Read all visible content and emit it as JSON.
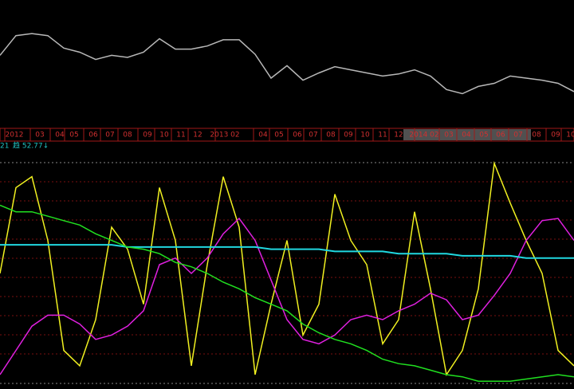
{
  "chart_data": [
    {
      "type": "line",
      "x": [
        0,
        2,
        4,
        6,
        8,
        10,
        12,
        14,
        16,
        18,
        20,
        22,
        24,
        26,
        28,
        30,
        32,
        34,
        36,
        38,
        40,
        42,
        44,
        46,
        48,
        50,
        52,
        54,
        56,
        58,
        60,
        62,
        64,
        66,
        68,
        70,
        72
      ],
      "xlim": [
        0,
        72
      ],
      "ylim": [
        0,
        100
      ],
      "xticks": [
        {
          "value": 1.8,
          "label": "2012"
        },
        {
          "value": 5,
          "label": "03"
        },
        {
          "value": 7.5,
          "label": "04"
        },
        {
          "value": 9.3,
          "label": "05"
        },
        {
          "value": 11.7,
          "label": "06"
        },
        {
          "value": 13.8,
          "label": "07"
        },
        {
          "value": 16,
          "label": "08"
        },
        {
          "value": 18.5,
          "label": "09"
        },
        {
          "value": 20.6,
          "label": "10"
        },
        {
          "value": 22.7,
          "label": "11"
        },
        {
          "value": 24.8,
          "label": "12"
        },
        {
          "value": 28.2,
          "label": "2013 02"
        },
        {
          "value": 33,
          "label": "04"
        },
        {
          "value": 35,
          "label": "05"
        },
        {
          "value": 37.3,
          "label": "06"
        },
        {
          "value": 39.3,
          "label": "07"
        },
        {
          "value": 41.5,
          "label": "08"
        },
        {
          "value": 43.7,
          "label": "09"
        },
        {
          "value": 45.8,
          "label": "10"
        },
        {
          "value": 48,
          "label": "11"
        },
        {
          "value": 50,
          "label": "12"
        },
        {
          "value": 53.2,
          "label": "2014 02"
        },
        {
          "value": 56.3,
          "label": "03"
        },
        {
          "value": 58.5,
          "label": "04"
        },
        {
          "value": 60.7,
          "label": "05"
        },
        {
          "value": 62.8,
          "label": "06"
        },
        {
          "value": 65,
          "label": "07"
        },
        {
          "value": 67.3,
          "label": "08"
        },
        {
          "value": 69.7,
          "label": "09"
        },
        {
          "value": 71.6,
          "label": "10"
        }
      ],
      "series": [
        {
          "color": "#b8b8b8",
          "values": [
            62,
            81,
            83,
            81,
            69,
            65,
            58,
            62,
            60,
            65,
            78,
            68,
            68,
            71,
            77,
            77,
            63,
            40,
            52,
            38,
            45,
            51,
            48,
            45,
            42,
            44,
            48,
            42,
            29,
            25,
            32,
            35,
            42,
            40,
            38,
            35,
            27
          ]
        }
      ]
    },
    {
      "type": "line",
      "label": "21",
      "indicator_label": "趋 52.77↓",
      "x": [
        0,
        2,
        4,
        6,
        8,
        10,
        12,
        14,
        16,
        18,
        20,
        22,
        24,
        26,
        28,
        30,
        32,
        34,
        36,
        38,
        40,
        42,
        44,
        46,
        48,
        50,
        52,
        54,
        56,
        58,
        60,
        62,
        64,
        66,
        68,
        70,
        72
      ],
      "xlim": [
        0,
        72
      ],
      "ylim": [
        0,
        100
      ],
      "series": [
        {
          "color": "#f0f020",
          "values": [
            50,
            89,
            94,
            65,
            15,
            8,
            29,
            71,
            61,
            36,
            89,
            65,
            8,
            54,
            94,
            71,
            4,
            36,
            65,
            22,
            36,
            86,
            65,
            54,
            18,
            29,
            78,
            43,
            4,
            15,
            43,
            100,
            82,
            65,
            50,
            15,
            8
          ]
        },
        {
          "color": "#e020e0",
          "values": [
            4,
            15,
            26,
            31,
            31,
            27,
            20,
            22,
            26,
            33,
            54,
            57,
            50,
            57,
            68,
            75,
            65,
            47,
            29,
            20,
            18,
            22,
            29,
            31,
            29,
            33,
            36,
            41,
            38,
            29,
            31,
            40,
            50,
            65,
            74,
            75,
            65
          ]
        },
        {
          "color": "#20d8e0",
          "values": [
            63,
            63,
            63,
            63,
            63,
            63,
            63,
            63,
            62,
            62,
            62,
            62,
            62,
            62,
            62,
            62,
            62,
            61,
            61,
            61,
            61,
            60,
            60,
            60,
            60,
            59,
            59,
            59,
            59,
            58,
            58,
            58,
            58,
            57,
            57,
            57,
            57
          ]
        },
        {
          "color": "#20e020",
          "values": [
            81,
            78,
            78,
            76,
            74,
            72,
            68,
            65,
            62,
            61,
            59,
            55,
            53,
            50,
            46,
            43,
            39,
            36,
            33,
            27,
            23,
            20,
            18,
            15,
            11,
            9,
            8,
            6,
            4,
            3,
            1,
            1,
            1,
            2,
            3,
            4,
            3
          ]
        }
      ]
    }
  ]
}
